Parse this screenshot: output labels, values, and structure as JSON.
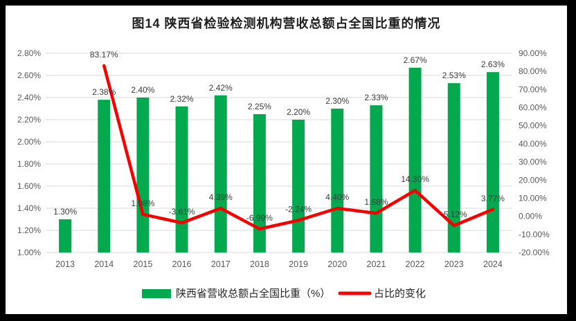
{
  "chart_data": {
    "type": "combo-bar-line",
    "title": "图14  陕西省检验检测机构营收总额占全国比重的情况",
    "categories": [
      "2013",
      "2014",
      "2015",
      "2016",
      "2017",
      "2018",
      "2019",
      "2020",
      "2021",
      "2022",
      "2023",
      "2024"
    ],
    "series": [
      {
        "name": "陕西省营收总额占全国比重（%）",
        "type": "bar",
        "axis": "left",
        "color": "#03A94F",
        "values": [
          1.3,
          2.38,
          2.4,
          2.32,
          2.42,
          2.25,
          2.2,
          2.3,
          2.33,
          2.67,
          2.53,
          2.63
        ],
        "labels": [
          "1.30%",
          "2.38%",
          "2.40%",
          "2.32%",
          "2.42%",
          "2.25%",
          "2.20%",
          "2.30%",
          "2.33%",
          "2.67%",
          "2.53%",
          "2.63%"
        ]
      },
      {
        "name": "占比的变化",
        "type": "line",
        "axis": "right",
        "color": "#F80000",
        "values": [
          null,
          83.17,
          1.08,
          -3.61,
          4.39,
          -6.99,
          -2.24,
          4.4,
          1.68,
          14.3,
          -5.12,
          3.77
        ],
        "labels": [
          null,
          "83.17%",
          "1.08%",
          "-3.61%",
          "4.39%",
          "-6.99%",
          "-2.24%",
          "4.40%",
          "1.68%",
          "14.30%",
          "-5.12%",
          "3.77%"
        ]
      }
    ],
    "left_axis": {
      "min": 1.0,
      "max": 2.8,
      "tick_labels": [
        "2.80%",
        "2.60%",
        "2.40%",
        "2.20%",
        "2.00%",
        "1.80%",
        "1.60%",
        "1.40%",
        "1.20%",
        "1.00%"
      ]
    },
    "right_axis": {
      "min": -20,
      "max": 90,
      "tick_labels": [
        "90.00%",
        "80.00%",
        "70.00%",
        "60.00%",
        "50.00%",
        "40.00%",
        "30.00%",
        "20.00%",
        "10.00%",
        "0.00%",
        "-10.00%",
        "-20.00%"
      ]
    },
    "grid": true,
    "legend_position": "bottom",
    "colors": {
      "grid": "#D9D9D9",
      "axis_text": "#595959",
      "data_label": "#3B3B3B",
      "title": "#1F1F1F",
      "frame": "#000000",
      "background": "#FFFFFF"
    }
  }
}
